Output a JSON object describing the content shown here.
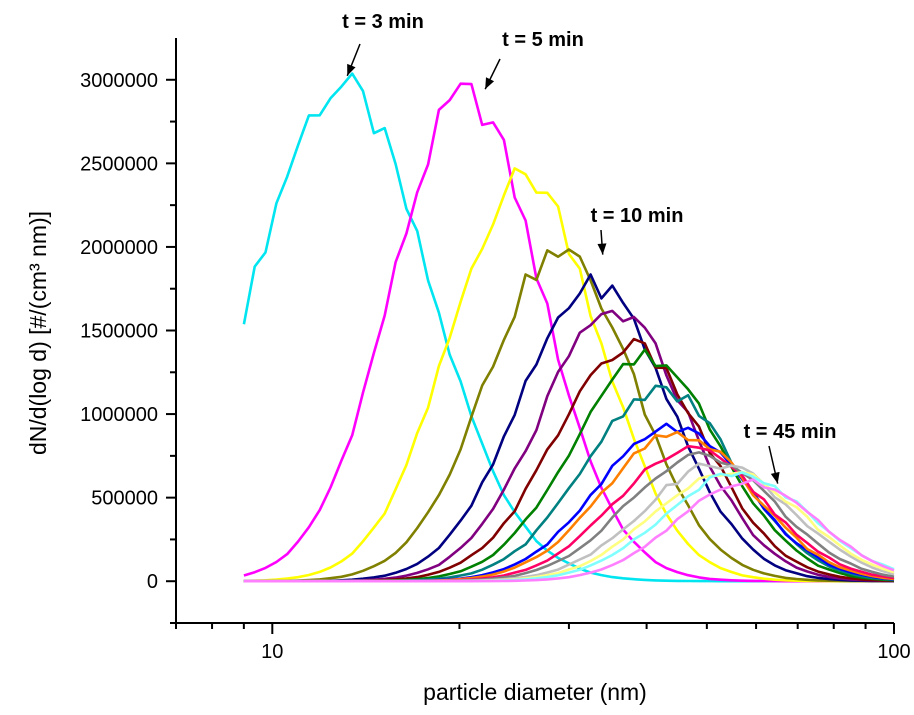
{
  "chart_data": {
    "type": "line",
    "xlabel": "particle diameter (nm)",
    "ylabel": "dN/d(log d) [#/(cm³ nm)]",
    "xscale": "log",
    "xlim": [
      7,
      100
    ],
    "ylim": [
      -250000,
      3250000
    ],
    "x_ticks": [
      10,
      100
    ],
    "y_ticks": [
      0,
      500000,
      1000000,
      1500000,
      2000000,
      2500000,
      3000000
    ],
    "x_tick_labels": [
      "10",
      "100"
    ],
    "y_tick_labels": [
      "0",
      "500000",
      "1000000",
      "1500000",
      "2000000",
      "2500000",
      "3000000"
    ],
    "grid": false,
    "annotations": [
      {
        "text": "t = 3 min",
        "x": 13.2,
        "y": 3000000
      },
      {
        "text": "t = 5 min",
        "x": 22,
        "y": 2920000
      },
      {
        "text": "t = 10 min",
        "x": 34,
        "y": 1930000
      },
      {
        "text": "t = 45 min",
        "x": 65,
        "y": 560000
      }
    ],
    "series": [
      {
        "color": "#00e5f0",
        "mode": 12.9,
        "peak": 2950000,
        "width": 0.2
      },
      {
        "color": "#ff00ff",
        "mode": 20.5,
        "peak": 2900000,
        "width": 0.17
      },
      {
        "color": "#ffff00",
        "mode": 25.5,
        "peak": 2420000,
        "width": 0.17
      },
      {
        "color": "#808000",
        "mode": 29.0,
        "peak": 1960000,
        "width": 0.17
      },
      {
        "color": "#000080",
        "mode": 33.0,
        "peak": 1770000,
        "width": 0.17
      },
      {
        "color": "#800080",
        "mode": 35.5,
        "peak": 1600000,
        "width": 0.17
      },
      {
        "color": "#800000",
        "mode": 37.5,
        "peak": 1400000,
        "width": 0.17
      },
      {
        "color": "#008000",
        "mode": 40.0,
        "peak": 1340000,
        "width": 0.17
      },
      {
        "color": "#008080",
        "mode": 42.0,
        "peak": 1150000,
        "width": 0.17
      },
      {
        "color": "#0000ff",
        "mode": 44.0,
        "peak": 920000,
        "width": 0.17
      },
      {
        "color": "#ff8000",
        "mode": 45.0,
        "peak": 880000,
        "width": 0.17
      },
      {
        "color": "#ff0066",
        "mode": 47.0,
        "peak": 780000,
        "width": 0.17
      },
      {
        "color": "#808080",
        "mode": 49.0,
        "peak": 750000,
        "width": 0.17
      },
      {
        "color": "#c0c0c0",
        "mode": 52.0,
        "peak": 700000,
        "width": 0.17
      },
      {
        "color": "#ffff80",
        "mode": 54.0,
        "peak": 660000,
        "width": 0.17
      },
      {
        "color": "#80ffff",
        "mode": 56.0,
        "peak": 640000,
        "width": 0.17
      },
      {
        "color": "#ff80ff",
        "mode": 58.0,
        "peak": 600000,
        "width": 0.16
      }
    ]
  }
}
